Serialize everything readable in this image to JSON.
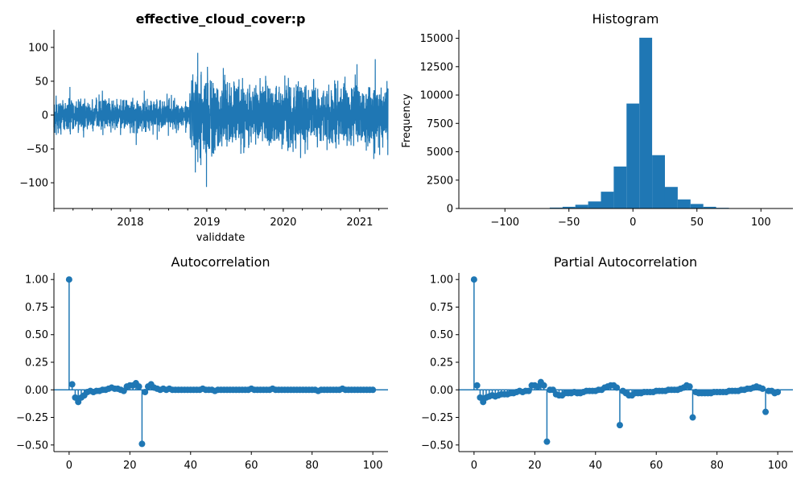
{
  "chart_data": [
    {
      "id": "timeseries",
      "type": "line",
      "title": "effective_cloud_cover:p",
      "xlabel": "validdate",
      "ylabel": "",
      "color": "#1f77b4",
      "x_tick_labels": [
        "2018",
        "2019",
        "2020",
        "2021"
      ],
      "y_ticks": [
        -100,
        -50,
        0,
        50,
        100
      ],
      "ylim": [
        -138,
        126
      ],
      "xlim_years": [
        2017.0,
        2021.37
      ],
      "amplitude_envelope": [
        {
          "x": 2017.0,
          "amp": 32
        },
        {
          "x": 2017.5,
          "amp": 28
        },
        {
          "x": 2018.0,
          "amp": 28
        },
        {
          "x": 2018.5,
          "amp": 28
        },
        {
          "x": 2018.75,
          "amp": 22
        },
        {
          "x": 2018.85,
          "amp": 80
        },
        {
          "x": 2019.0,
          "amp": 70
        },
        {
          "x": 2019.5,
          "amp": 55
        },
        {
          "x": 2020.0,
          "amp": 55
        },
        {
          "x": 2020.5,
          "amp": 50
        },
        {
          "x": 2021.0,
          "amp": 55
        },
        {
          "x": 2021.37,
          "amp": 58
        }
      ]
    },
    {
      "id": "histogram",
      "type": "bar",
      "title": "Histogram",
      "xlabel": "",
      "ylabel": "Frequency",
      "color": "#1f77b4",
      "x_ticks": [
        -100,
        -50,
        0,
        50,
        100
      ],
      "x_tick_labels": [
        "−100",
        "−50",
        "0",
        "50",
        "100"
      ],
      "y_ticks": [
        0,
        2500,
        5000,
        7500,
        10000,
        12500,
        15000
      ],
      "xlim": [
        -136,
        125
      ],
      "ylim": [
        0,
        15750
      ],
      "bin_width": 10,
      "bins": [
        {
          "x0": -65,
          "value": 80
        },
        {
          "x0": -55,
          "value": 150
        },
        {
          "x0": -45,
          "value": 330
        },
        {
          "x0": -35,
          "value": 620
        },
        {
          "x0": -25,
          "value": 1480
        },
        {
          "x0": -15,
          "value": 3700
        },
        {
          "x0": -5,
          "value": 9250
        },
        {
          "x0": 5,
          "value": 15050
        },
        {
          "x0": 15,
          "value": 4700
        },
        {
          "x0": 25,
          "value": 1900
        },
        {
          "x0": 35,
          "value": 800
        },
        {
          "x0": 45,
          "value": 400
        },
        {
          "x0": 55,
          "value": 150
        },
        {
          "x0": 65,
          "value": 60
        }
      ]
    },
    {
      "id": "acf",
      "type": "scatter",
      "title": "Autocorrelation",
      "xlabel": "",
      "ylabel": "",
      "color": "#1f77b4",
      "x_ticks": [
        0,
        20,
        40,
        60,
        80,
        100
      ],
      "y_ticks": [
        -0.5,
        -0.25,
        0.0,
        0.25,
        0.5,
        0.75,
        1.0
      ],
      "y_tick_labels": [
        "−0.50",
        "−0.25",
        "0.00",
        "0.25",
        "0.50",
        "0.75",
        "1.00"
      ],
      "xlim": [
        -5,
        105
      ],
      "ylim": [
        -0.56,
        1.06
      ],
      "values": [
        1.0,
        0.05,
        -0.07,
        -0.11,
        -0.07,
        -0.05,
        -0.02,
        -0.01,
        -0.02,
        -0.01,
        -0.01,
        0.0,
        0.0,
        0.01,
        0.02,
        0.01,
        0.01,
        0.0,
        -0.01,
        0.03,
        0.04,
        0.04,
        0.06,
        0.03,
        -0.49,
        -0.02,
        0.03,
        0.05,
        0.02,
        0.01,
        0.0,
        0.01,
        0.0,
        0.01,
        0.0,
        0.0,
        0.0,
        0.0,
        0.0,
        0.0,
        0.0,
        0.0,
        0.0,
        0.0,
        0.01,
        0.0,
        0.0,
        0.0,
        -0.01,
        0.0,
        0.0,
        0.0,
        0.0,
        0.0,
        0.0,
        0.0,
        0.0,
        0.0,
        0.0,
        0.0,
        0.01,
        0.0,
        0.0,
        0.0,
        0.0,
        0.0,
        0.0,
        0.01,
        0.0,
        0.0,
        0.0,
        0.0,
        0.0,
        0.0,
        0.0,
        0.0,
        0.0,
        0.0,
        0.0,
        0.0,
        0.0,
        0.0,
        -0.01,
        0.0,
        0.0,
        0.0,
        0.0,
        0.0,
        0.0,
        0.0,
        0.01,
        0.0,
        0.0,
        0.0,
        0.0,
        0.0,
        0.0,
        0.0,
        0.0,
        0.0,
        0.0
      ]
    },
    {
      "id": "pacf",
      "type": "scatter",
      "title": "Partial Autocorrelation",
      "xlabel": "",
      "ylabel": "",
      "color": "#1f77b4",
      "x_ticks": [
        0,
        20,
        40,
        60,
        80,
        100
      ],
      "y_ticks": [
        -0.5,
        -0.25,
        0.0,
        0.25,
        0.5,
        0.75,
        1.0
      ],
      "y_tick_labels": [
        "−0.50",
        "−0.25",
        "0.00",
        "0.25",
        "0.50",
        "0.75",
        "1.00"
      ],
      "xlim": [
        -5,
        105
      ],
      "ylim": [
        -0.56,
        1.06
      ],
      "values": [
        1.0,
        0.04,
        -0.07,
        -0.11,
        -0.07,
        -0.06,
        -0.05,
        -0.06,
        -0.05,
        -0.04,
        -0.04,
        -0.04,
        -0.03,
        -0.03,
        -0.02,
        -0.01,
        -0.02,
        -0.01,
        -0.01,
        0.04,
        0.04,
        0.03,
        0.07,
        0.04,
        -0.47,
        0.0,
        0.0,
        -0.04,
        -0.05,
        -0.05,
        -0.03,
        -0.03,
        -0.03,
        -0.02,
        -0.03,
        -0.03,
        -0.02,
        -0.01,
        -0.01,
        -0.01,
        -0.01,
        0.0,
        0.0,
        0.02,
        0.03,
        0.04,
        0.04,
        0.02,
        -0.32,
        -0.01,
        -0.03,
        -0.05,
        -0.05,
        -0.03,
        -0.03,
        -0.03,
        -0.02,
        -0.02,
        -0.02,
        -0.02,
        -0.01,
        -0.01,
        -0.01,
        -0.01,
        0.0,
        0.0,
        0.0,
        0.0,
        0.01,
        0.02,
        0.04,
        0.03,
        -0.25,
        -0.02,
        -0.03,
        -0.03,
        -0.03,
        -0.03,
        -0.03,
        -0.02,
        -0.02,
        -0.02,
        -0.02,
        -0.02,
        -0.01,
        -0.01,
        -0.01,
        -0.01,
        0.0,
        0.0,
        0.01,
        0.01,
        0.02,
        0.03,
        0.02,
        0.01,
        -0.2,
        -0.01,
        -0.01,
        -0.03,
        -0.02
      ]
    }
  ]
}
